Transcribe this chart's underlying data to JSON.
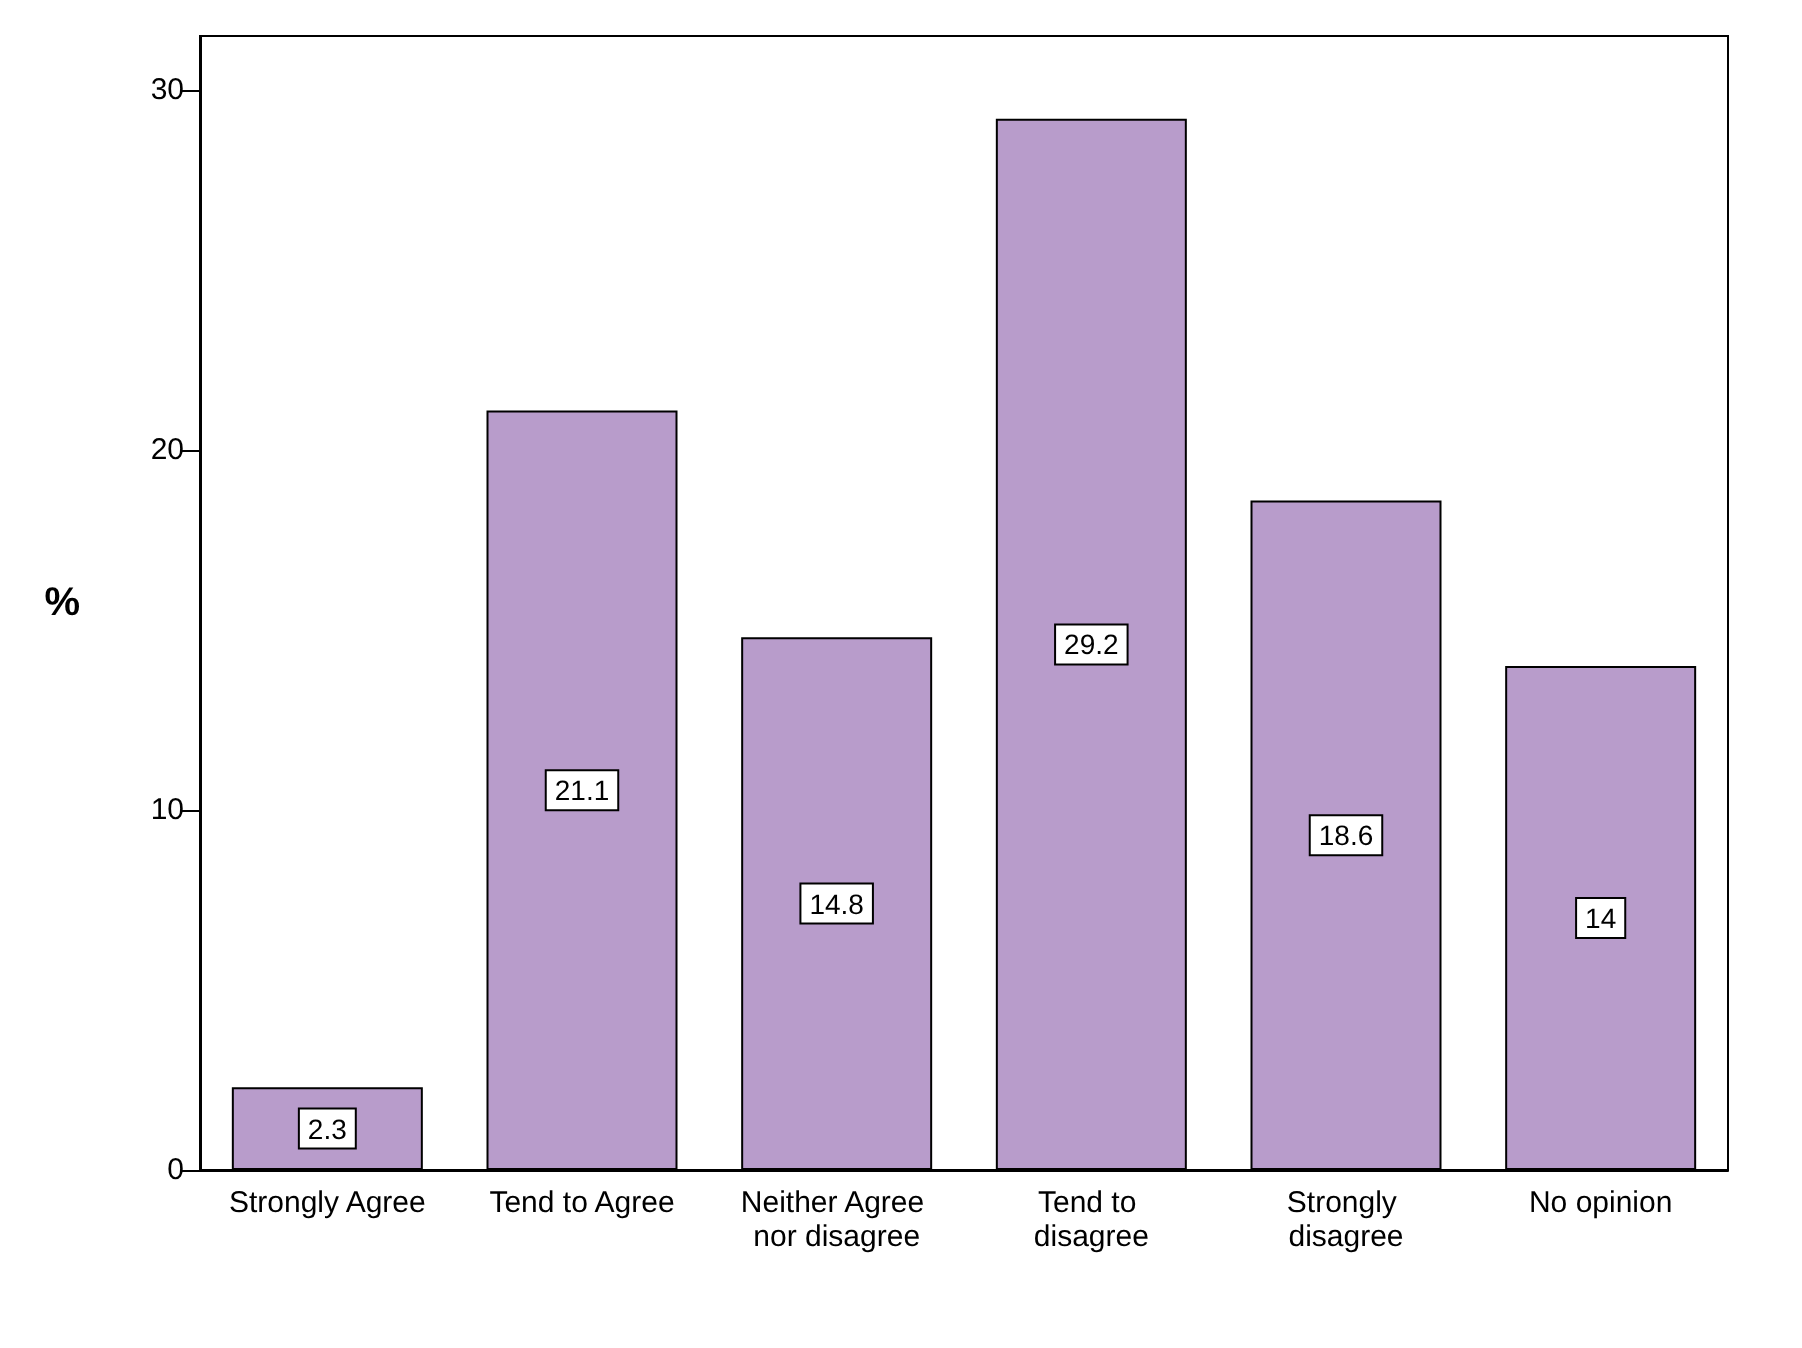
{
  "chart_data": {
    "type": "bar",
    "ylabel": "%",
    "categories": [
      "Strongly Agree",
      "Tend to Agree",
      "Neither Agree nor disagree",
      "Tend to disagree",
      "Strongly disagree",
      "No opinion"
    ],
    "values": [
      2.3,
      21.1,
      14.8,
      29.2,
      18.6,
      14
    ],
    "color": "#b89ccb",
    "ylim": [
      0,
      31.5
    ],
    "yticks": [
      0,
      10,
      20,
      30
    ],
    "grid": false,
    "data_labels": true
  }
}
